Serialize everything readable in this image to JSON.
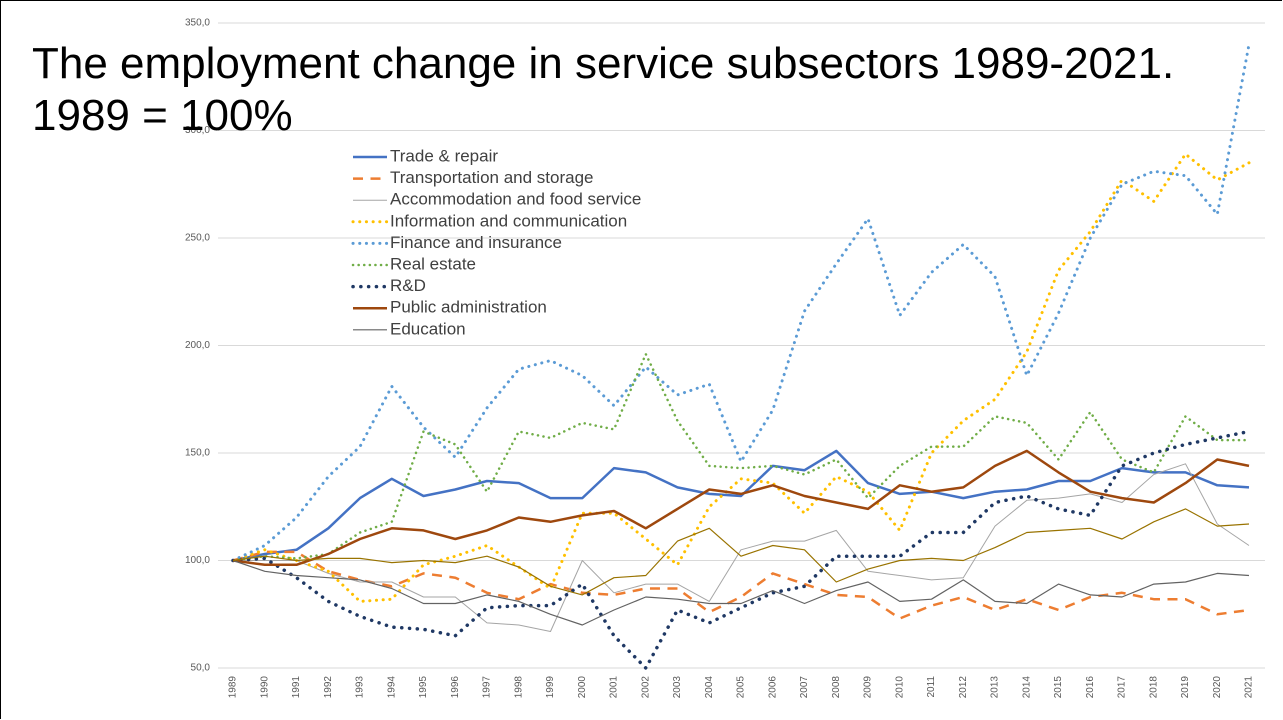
{
  "chart_data": {
    "type": "line",
    "title": "The employment change in service subsectors 1989-2021. 1989 = 100%",
    "categories": [
      "1989",
      "1990",
      "1991",
      "1992",
      "1993",
      "1994",
      "1995",
      "1996",
      "1997",
      "1998",
      "1999",
      "2000",
      "2001",
      "2002",
      "2003",
      "2004",
      "2005",
      "2006",
      "2007",
      "2008",
      "2009",
      "2010",
      "2011",
      "2012",
      "2013",
      "2014",
      "2015",
      "2016",
      "2017",
      "2018",
      "2019",
      "2020",
      "2021"
    ],
    "ylim": [
      50,
      350
    ],
    "yticks": [
      {
        "value": 50,
        "label": "50,0"
      },
      {
        "value": 100,
        "label": "100,0"
      },
      {
        "value": 150,
        "label": "150,0"
      },
      {
        "value": 200,
        "label": "200,0"
      },
      {
        "value": 250,
        "label": "250,0"
      },
      {
        "value": 300,
        "label": "300,0"
      },
      {
        "value": 350,
        "label": "350,0"
      }
    ],
    "grid": true,
    "series": [
      {
        "name": "Trade & repair",
        "color": "#4472c4",
        "line_style": "solid",
        "line_width": 2.5,
        "values": [
          100,
          103,
          105,
          115,
          129,
          138,
          130,
          133,
          137,
          136,
          129,
          129,
          143,
          141,
          134,
          131,
          130,
          144,
          142,
          151,
          136,
          131,
          132,
          129,
          132,
          133,
          137,
          137,
          143,
          141,
          141,
          135,
          134
        ]
      },
      {
        "name": "Transportation and storage",
        "color": "#ed7d31",
        "line_style": "dashed",
        "line_width": 2.5,
        "values": [
          100,
          104,
          104,
          95,
          91,
          88,
          94,
          92,
          85,
          82,
          89,
          85,
          84,
          87,
          87,
          76,
          83,
          94,
          89,
          84,
          83,
          73,
          79,
          83,
          77,
          82,
          77,
          83,
          85,
          82,
          82,
          75,
          77
        ]
      },
      {
        "name": "Accommodation and food service",
        "color": "#a5a5a5",
        "line_style": "solid",
        "line_width": 1,
        "values": [
          100,
          100,
          100,
          94,
          90,
          90,
          83,
          83,
          71,
          70,
          67,
          100,
          85,
          89,
          89,
          81,
          105,
          109,
          109,
          114,
          95,
          93,
          91,
          92,
          116,
          128,
          129,
          131,
          127,
          140,
          145,
          117,
          107
        ]
      },
      {
        "name": "Information and communication",
        "color": "#ffc000",
        "line_style": "dotted",
        "line_width": 3,
        "values": [
          100,
          105,
          100,
          95,
          81,
          82,
          98,
          102,
          107,
          97,
          87,
          122,
          122,
          110,
          98,
          125,
          138,
          136,
          122,
          139,
          132,
          114,
          150,
          165,
          175,
          197,
          235,
          253,
          277,
          267,
          289,
          277,
          285
        ]
      },
      {
        "name": "Finance and insurance",
        "color": "#5b9bd5",
        "line_style": "dotted",
        "line_width": 3,
        "values": [
          100,
          107,
          120,
          139,
          153,
          181,
          162,
          148,
          171,
          189,
          193,
          186,
          172,
          190,
          177,
          182,
          146,
          170,
          216,
          238,
          259,
          214,
          234,
          247,
          232,
          186,
          215,
          250,
          275,
          281,
          279,
          261,
          340
        ]
      },
      {
        "name": "Real estate",
        "color": "#70ad47",
        "line_style": "dotted",
        "line_width": 2.5,
        "values": [
          100,
          102,
          101,
          103,
          113,
          118,
          160,
          154,
          132,
          160,
          157,
          164,
          161,
          196,
          165,
          144,
          143,
          144,
          140,
          147,
          129,
          144,
          153,
          153,
          167,
          164,
          147,
          169,
          147,
          141,
          167,
          156,
          156
        ]
      },
      {
        "name": "R&D",
        "color": "#1f3864",
        "line_style": "dotted",
        "line_width": 3.5,
        "values": [
          100,
          101,
          92,
          81,
          74,
          69,
          68,
          65,
          78,
          79,
          79,
          89,
          65,
          50,
          77,
          71,
          78,
          85,
          88,
          102,
          102,
          102,
          113,
          113,
          127,
          130,
          124,
          121,
          144,
          150,
          154,
          157,
          160
        ]
      },
      {
        "name": "Public administration",
        "color": "#9e480e",
        "line_style": "solid",
        "line_width": 2.5,
        "values": [
          100,
          98,
          98,
          103,
          110,
          115,
          114,
          110,
          114,
          120,
          118,
          121,
          123,
          115,
          124,
          133,
          131,
          135,
          130,
          127,
          124,
          135,
          132,
          134,
          144,
          151,
          141,
          132,
          129,
          127,
          136,
          147,
          144
        ]
      },
      {
        "name": "Education",
        "color": "#636363",
        "line_style": "solid",
        "line_width": 1.2,
        "values": [
          100,
          95,
          93,
          92,
          91,
          87,
          80,
          80,
          84,
          81,
          75,
          70,
          77,
          83,
          82,
          80,
          80,
          86,
          80,
          86,
          90,
          81,
          82,
          91,
          81,
          80,
          89,
          84,
          83,
          89,
          90,
          94,
          93
        ]
      },
      {
        "color": "#997300",
        "line_style": "solid",
        "line_width": 1.2,
        "values": [
          100,
          102,
          100,
          101,
          101,
          99,
          100,
          99,
          102,
          97,
          88,
          84,
          92,
          93,
          109,
          115,
          102,
          107,
          105,
          90,
          96,
          100,
          101,
          100,
          106,
          113,
          114,
          115,
          110,
          118,
          124,
          116,
          117
        ]
      }
    ]
  }
}
